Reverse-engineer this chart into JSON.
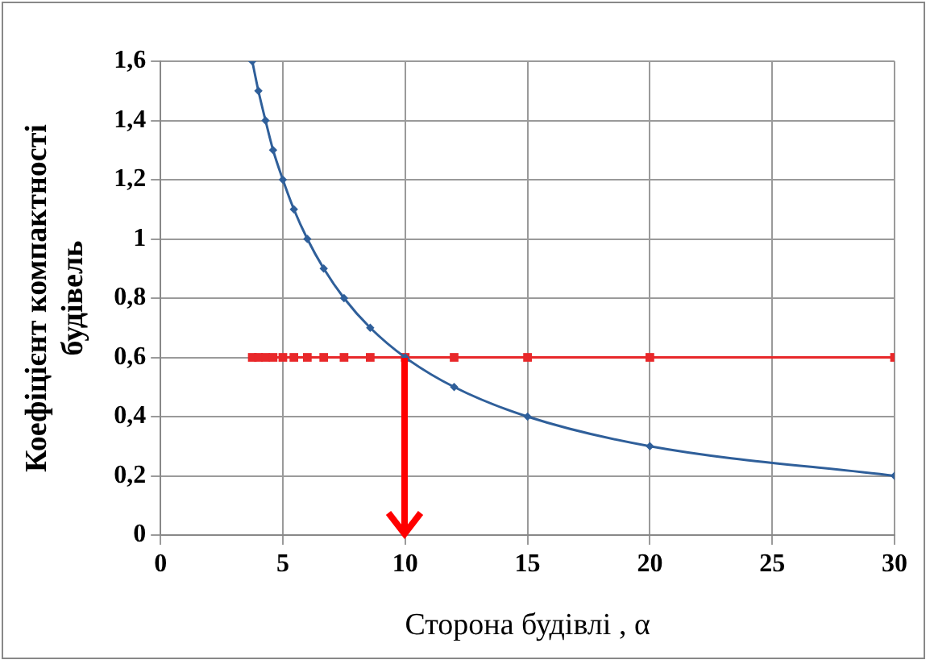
{
  "chart_data": {
    "type": "line",
    "xlabel": "Сторона будівлі , α",
    "ylabel": "Коефіцієнт компактності будівель",
    "x": [
      3.75,
      4,
      4.29,
      4.6,
      5,
      5.45,
      6,
      6.67,
      7.5,
      8.57,
      10,
      12,
      15,
      20,
      30
    ],
    "series": [
      {
        "color": "#2f5f9a",
        "marker": "diamond",
        "values": [
          1.6,
          1.5,
          1.4,
          1.3,
          1.2,
          1.1,
          1.0,
          0.9,
          0.8,
          0.7,
          0.6,
          0.5,
          0.4,
          0.3,
          0.2
        ]
      },
      {
        "color": "#e8282a",
        "marker": "square",
        "values": [
          0.6,
          0.6,
          0.6,
          0.6,
          0.6,
          0.6,
          0.6,
          0.6,
          0.6,
          0.6,
          0.6,
          0.6,
          0.6,
          0.6,
          0.6
        ]
      }
    ],
    "ref_lines": [
      {
        "axis": "x",
        "value": 10,
        "color": "#ff0000"
      }
    ],
    "xlim": [
      0,
      30
    ],
    "xticks": [
      0,
      5,
      10,
      15,
      20,
      25,
      30
    ],
    "ylim": [
      0,
      1.6
    ],
    "yticks": [
      0,
      {
        "value": 0.2,
        "label": "0,2"
      },
      {
        "value": 0.4,
        "label": "0,4"
      },
      {
        "value": 0.6,
        "label": "0,6"
      },
      {
        "value": 0.8,
        "label": "0,8"
      },
      1,
      {
        "value": 1.2,
        "label": "1,2"
      },
      {
        "value": 1.4,
        "label": "1,4"
      },
      {
        "value": 1.6,
        "label": "1,6"
      }
    ],
    "grid": true,
    "legend": false
  }
}
